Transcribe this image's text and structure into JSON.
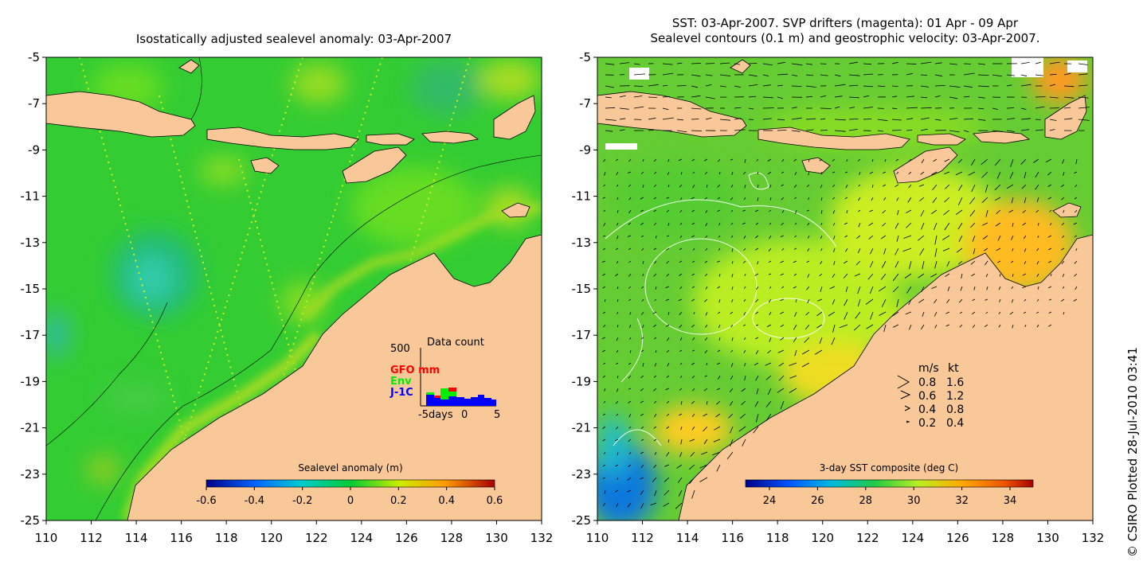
{
  "left_panel": {
    "title": "Isostatically adjusted sealevel anomaly: 03-Apr-2007",
    "colorbar_label": "Sealevel anomaly (m)",
    "colorbar_ticks": [
      "-0.6",
      "-0.4",
      "-0.2",
      "0",
      "0.2",
      "0.4",
      "0.6"
    ],
    "inset": {
      "title": "Data count",
      "ymax_label": "500",
      "legend": [
        {
          "label": "GFO mm",
          "color": "#ff0000"
        },
        {
          "label": "Env",
          "color": "#00ee00"
        },
        {
          "label": "J-1C",
          "color": "#0000ff"
        }
      ],
      "x_labels": [
        "-5days",
        "0",
        "5"
      ]
    }
  },
  "right_panel": {
    "title_line1": "SST: 03-Apr-2007. SVP drifters (magenta): 01 Apr - 09 Apr",
    "title_line2": "Sealevel contours (0.1 m) and geostrophic velocity: 03-Apr-2007.",
    "colorbar_label": "3-day SST composite (deg C)",
    "colorbar_ticks": [
      "24",
      "26",
      "28",
      "30",
      "32",
      "34"
    ],
    "velocity_key": {
      "header_ms": "m/s",
      "header_kt": "kt",
      "rows": [
        {
          "ms": "0.8",
          "kt": "1.6"
        },
        {
          "ms": "0.6",
          "kt": "1.2"
        },
        {
          "ms": "0.4",
          "kt": "0.8"
        },
        {
          "ms": "0.2",
          "kt": "0.4"
        }
      ]
    }
  },
  "axes": {
    "y_ticks": [
      "-5",
      "-7",
      "-9",
      "-11",
      "-13",
      "-15",
      "-17",
      "-19",
      "-21",
      "-23",
      "-25"
    ],
    "x_ticks": [
      "110",
      "112",
      "114",
      "116",
      "118",
      "120",
      "122",
      "124",
      "126",
      "128",
      "130",
      "132"
    ]
  },
  "copyright": "© CSIRO Plotted 28-Jul-2010 03:41",
  "colors": {
    "land": "#f8c898",
    "sla_base": "#33cc33",
    "sst_base": "#66cc33"
  }
}
